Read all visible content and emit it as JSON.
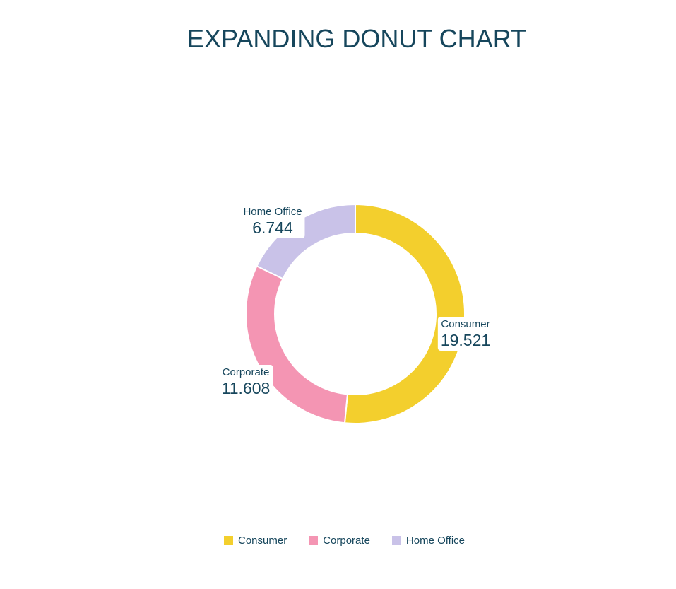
{
  "title": "EXPANDING DONUT CHART",
  "colors": {
    "text": "#16465c",
    "background": "#ffffff",
    "consumer": "#f3cf2d",
    "corporate": "#f495b3",
    "home_office": "#c9c2e8"
  },
  "chart_data": {
    "type": "pie",
    "subtype": "donut",
    "title": "EXPANDING DONUT CHART",
    "legend_position": "bottom",
    "start_angle_deg": 0,
    "direction": "clockwise",
    "slices": [
      {
        "name": "Consumer",
        "value": 19521,
        "value_label": "19.521",
        "color": "#f3cf2d"
      },
      {
        "name": "Corporate",
        "value": 11608,
        "value_label": "11.608",
        "color": "#f495b3"
      },
      {
        "name": "Home Office",
        "value": 6744,
        "value_label": "6.744",
        "color": "#c9c2e8"
      }
    ]
  },
  "legend": {
    "items": [
      {
        "label": "Consumer",
        "color": "#f3cf2d"
      },
      {
        "label": "Corporate",
        "color": "#f495b3"
      },
      {
        "label": "Home Office",
        "color": "#c9c2e8"
      }
    ]
  }
}
